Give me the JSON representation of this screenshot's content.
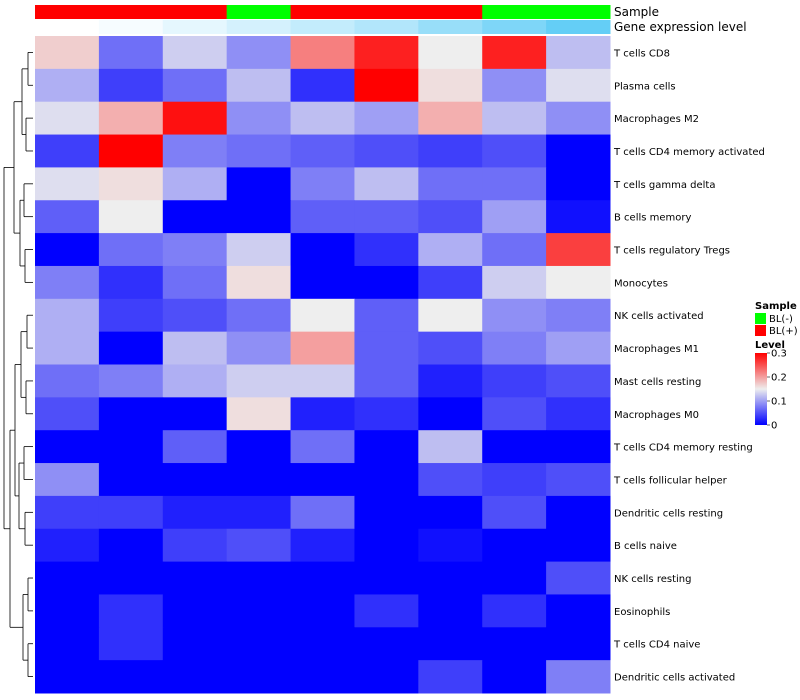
{
  "chart_data": {
    "type": "heatmap",
    "rows": [
      "T cells CD8",
      "Plasma cells",
      "Macrophages M2",
      "T cells CD4 memory activated",
      "T cells gamma delta",
      "B cells memory",
      "T cells regulatory  Tregs",
      "Monocytes",
      "NK cells activated",
      "Macrophages M1",
      "Mast cells resting",
      "Macrophages M0",
      "T cells CD4 memory resting",
      "T cells follicular helper",
      "Dendritic cells resting",
      "B cells naive",
      "NK cells resting",
      "Eosinophils",
      "T cells CD4 naive",
      "Dendritic cells activated"
    ],
    "annotation_labels": {
      "sample": "Sample",
      "expression": "Gene expression level"
    },
    "sample_groups": [
      "BL(+)",
      "BL(+)",
      "BL(+)",
      "BL(-)",
      "BL(+)",
      "BL(+)",
      "BL(+)",
      "BL(-)",
      "BL(-)"
    ],
    "expression_levels": [
      0.0,
      0.05,
      0.15,
      0.25,
      0.35,
      0.45,
      0.6,
      0.75,
      0.9
    ],
    "values": [
      [
        0.17,
        0.07,
        0.13,
        0.09,
        0.22,
        0.28,
        0.15,
        0.28,
        0.12
      ],
      [
        0.11,
        0.04,
        0.07,
        0.12,
        0.03,
        0.3,
        0.16,
        0.09,
        0.14
      ],
      [
        0.14,
        0.19,
        0.29,
        0.09,
        0.12,
        0.1,
        0.19,
        0.12,
        0.09
      ],
      [
        0.04,
        0.3,
        0.08,
        0.07,
        0.06,
        0.05,
        0.04,
        0.05,
        0.0
      ],
      [
        0.14,
        0.16,
        0.11,
        0.0,
        0.08,
        0.12,
        0.07,
        0.07,
        0.0
      ],
      [
        0.06,
        0.15,
        0.0,
        0.0,
        0.06,
        0.06,
        0.05,
        0.1,
        0.01
      ],
      [
        0.0,
        0.07,
        0.08,
        0.13,
        0.0,
        0.03,
        0.11,
        0.07,
        0.26
      ],
      [
        0.08,
        0.03,
        0.07,
        0.16,
        0.0,
        0.0,
        0.04,
        0.13,
        0.15
      ],
      [
        0.11,
        0.04,
        0.05,
        0.07,
        0.15,
        0.06,
        0.15,
        0.09,
        0.08
      ],
      [
        0.11,
        0.0,
        0.12,
        0.09,
        0.2,
        0.06,
        0.05,
        0.08,
        0.1
      ],
      [
        0.07,
        0.08,
        0.11,
        0.13,
        0.13,
        0.06,
        0.02,
        0.04,
        0.05
      ],
      [
        0.05,
        0.0,
        0.0,
        0.16,
        0.02,
        0.03,
        0.0,
        0.05,
        0.03
      ],
      [
        0.0,
        0.0,
        0.06,
        0.0,
        0.07,
        0.0,
        0.12,
        0.0,
        0.0
      ],
      [
        0.09,
        0.0,
        0.0,
        0.0,
        0.0,
        0.0,
        0.05,
        0.04,
        0.05
      ],
      [
        0.04,
        0.04,
        0.02,
        0.02,
        0.07,
        0.0,
        0.0,
        0.05,
        0.0
      ],
      [
        0.02,
        0.0,
        0.04,
        0.05,
        0.02,
        0.0,
        0.01,
        0.0,
        0.0
      ],
      [
        0.0,
        0.0,
        0.0,
        0.0,
        0.0,
        0.0,
        0.0,
        0.0,
        0.05
      ],
      [
        0.0,
        0.03,
        0.0,
        0.0,
        0.0,
        0.03,
        0.0,
        0.03,
        0.0
      ],
      [
        0.0,
        0.03,
        0.0,
        0.0,
        0.0,
        0.0,
        0.0,
        0.0,
        0.0
      ],
      [
        0.0,
        0.0,
        0.0,
        0.0,
        0.0,
        0.0,
        0.04,
        0.0,
        0.08
      ]
    ],
    "color_scale": {
      "low": "#0000ff",
      "mid": "#eeeeee",
      "high": "#ff0000",
      "min": 0,
      "mid_value": 0.15,
      "max": 0.3
    },
    "legend": {
      "sample_title": "Sample",
      "sample_entries": [
        {
          "label": "BL(-)",
          "color": "#00ff00"
        },
        {
          "label": "BL(+)",
          "color": "#ff0000"
        }
      ],
      "level_title": "Level",
      "level_ticks": [
        "0.3",
        "0.2",
        "0.1",
        "0"
      ],
      "level_tick_values": [
        0.3,
        0.2,
        0.1,
        0.0
      ],
      "placement": "right"
    }
  },
  "colors": {
    "bl_neg": "#00ff00",
    "bl_pos": "#ff0000",
    "expr_low": "#ffffff",
    "expr_high": "#53c8f5",
    "dendrogram": "#000000"
  }
}
